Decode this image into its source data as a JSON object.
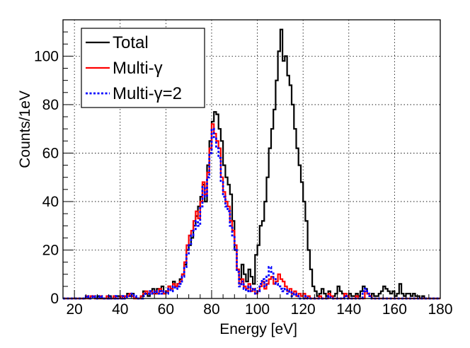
{
  "chart_data": {
    "type": "histogram",
    "title": "",
    "xlabel": "Energy [eV]",
    "ylabel": "Counts/1eV",
    "xlim": [
      15,
      180
    ],
    "ylim": [
      0,
      115
    ],
    "grid": true,
    "bin_width": 1,
    "x_ticks": [
      20,
      40,
      60,
      80,
      100,
      120,
      140,
      160,
      180
    ],
    "y_ticks": [
      0,
      20,
      40,
      60,
      80,
      100
    ],
    "legend_position": "top-left",
    "series": [
      {
        "name": "Total",
        "color": "#000000",
        "style": "solid",
        "points": [
          [
            15,
            0
          ],
          [
            24,
            0
          ],
          [
            25,
            1
          ],
          [
            26,
            0
          ],
          [
            27,
            1
          ],
          [
            29,
            0
          ],
          [
            30,
            1
          ],
          [
            31,
            0
          ],
          [
            35,
            1
          ],
          [
            36,
            0
          ],
          [
            38,
            1
          ],
          [
            40,
            0
          ],
          [
            42,
            1
          ],
          [
            43,
            2
          ],
          [
            44,
            1
          ],
          [
            45,
            2
          ],
          [
            46,
            0
          ],
          [
            49,
            1
          ],
          [
            50,
            3
          ],
          [
            51,
            2
          ],
          [
            52,
            1
          ],
          [
            53,
            3
          ],
          [
            54,
            4
          ],
          [
            55,
            2
          ],
          [
            56,
            4
          ],
          [
            57,
            3
          ],
          [
            58,
            5
          ],
          [
            59,
            2
          ],
          [
            60,
            3
          ],
          [
            61,
            5
          ],
          [
            62,
            4
          ],
          [
            63,
            7
          ],
          [
            64,
            5
          ],
          [
            65,
            6
          ],
          [
            66,
            8
          ],
          [
            67,
            10
          ],
          [
            68,
            14
          ],
          [
            69,
            20
          ],
          [
            70,
            22
          ],
          [
            71,
            25
          ],
          [
            72,
            30
          ],
          [
            73,
            34
          ],
          [
            74,
            38
          ],
          [
            75,
            42
          ],
          [
            76,
            47
          ],
          [
            77,
            40
          ],
          [
            78,
            55
          ],
          [
            79,
            65
          ],
          [
            80,
            73
          ],
          [
            81,
            77
          ],
          [
            82,
            76
          ],
          [
            83,
            70
          ],
          [
            84,
            65
          ],
          [
            85,
            55
          ],
          [
            86,
            50
          ],
          [
            87,
            47
          ],
          [
            88,
            43
          ],
          [
            89,
            32
          ],
          [
            90,
            20
          ],
          [
            91,
            12
          ],
          [
            92,
            8
          ],
          [
            93,
            14
          ],
          [
            94,
            10
          ],
          [
            95,
            7
          ],
          [
            96,
            12
          ],
          [
            97,
            9
          ],
          [
            98,
            6
          ],
          [
            99,
            18
          ],
          [
            100,
            22
          ],
          [
            101,
            30
          ],
          [
            102,
            32
          ],
          [
            103,
            40
          ],
          [
            104,
            50
          ],
          [
            105,
            62
          ],
          [
            106,
            70
          ],
          [
            107,
            78
          ],
          [
            108,
            90
          ],
          [
            109,
            102
          ],
          [
            110,
            111
          ],
          [
            111,
            98
          ],
          [
            112,
            100
          ],
          [
            113,
            92
          ],
          [
            114,
            88
          ],
          [
            115,
            80
          ],
          [
            116,
            70
          ],
          [
            117,
            62
          ],
          [
            118,
            55
          ],
          [
            119,
            48
          ],
          [
            120,
            40
          ],
          [
            121,
            32
          ],
          [
            122,
            20
          ],
          [
            123,
            12
          ],
          [
            124,
            5
          ],
          [
            125,
            3
          ],
          [
            126,
            1
          ],
          [
            127,
            2
          ],
          [
            128,
            4
          ],
          [
            129,
            2
          ],
          [
            130,
            1
          ],
          [
            131,
            3
          ],
          [
            132,
            1
          ],
          [
            134,
            2
          ],
          [
            135,
            5
          ],
          [
            136,
            3
          ],
          [
            137,
            2
          ],
          [
            138,
            1
          ],
          [
            140,
            2
          ],
          [
            141,
            1
          ],
          [
            143,
            2
          ],
          [
            144,
            1
          ],
          [
            145,
            3
          ],
          [
            146,
            5
          ],
          [
            147,
            4
          ],
          [
            148,
            2
          ],
          [
            149,
            1
          ],
          [
            150,
            2
          ],
          [
            151,
            1
          ],
          [
            153,
            2
          ],
          [
            154,
            3
          ],
          [
            155,
            5
          ],
          [
            156,
            4
          ],
          [
            157,
            3
          ],
          [
            158,
            2
          ],
          [
            159,
            3
          ],
          [
            160,
            1
          ],
          [
            161,
            2
          ],
          [
            162,
            6
          ],
          [
            163,
            2
          ],
          [
            164,
            1
          ],
          [
            165,
            2
          ],
          [
            167,
            1
          ],
          [
            168,
            2
          ],
          [
            169,
            1
          ],
          [
            171,
            0
          ],
          [
            172,
            1
          ],
          [
            173,
            0
          ],
          [
            180,
            0
          ]
        ]
      },
      {
        "name": "Multi-γ",
        "color": "#ff0000",
        "style": "solid",
        "points": [
          [
            15,
            0
          ],
          [
            25,
            1
          ],
          [
            26,
            0
          ],
          [
            27,
            1
          ],
          [
            29,
            0
          ],
          [
            31,
            1
          ],
          [
            32,
            0
          ],
          [
            34,
            1
          ],
          [
            35,
            0
          ],
          [
            37,
            1
          ],
          [
            38,
            0
          ],
          [
            40,
            1
          ],
          [
            41,
            0
          ],
          [
            42,
            1
          ],
          [
            44,
            2
          ],
          [
            45,
            1
          ],
          [
            46,
            0
          ],
          [
            49,
            1
          ],
          [
            50,
            2
          ],
          [
            51,
            3
          ],
          [
            52,
            2
          ],
          [
            53,
            3
          ],
          [
            54,
            2
          ],
          [
            55,
            3
          ],
          [
            56,
            2
          ],
          [
            57,
            4
          ],
          [
            58,
            3
          ],
          [
            59,
            2
          ],
          [
            60,
            3
          ],
          [
            61,
            5
          ],
          [
            62,
            4
          ],
          [
            63,
            6
          ],
          [
            64,
            5
          ],
          [
            65,
            6
          ],
          [
            66,
            7
          ],
          [
            67,
            10
          ],
          [
            68,
            15
          ],
          [
            69,
            22
          ],
          [
            70,
            26
          ],
          [
            71,
            28
          ],
          [
            72,
            32
          ],
          [
            73,
            36
          ],
          [
            74,
            33
          ],
          [
            75,
            40
          ],
          [
            76,
            48
          ],
          [
            77,
            43
          ],
          [
            78,
            52
          ],
          [
            79,
            62
          ],
          [
            80,
            72
          ],
          [
            81,
            68
          ],
          [
            82,
            65
          ],
          [
            83,
            62
          ],
          [
            84,
            50
          ],
          [
            85,
            44
          ],
          [
            86,
            40
          ],
          [
            87,
            38
          ],
          [
            88,
            32
          ],
          [
            89,
            28
          ],
          [
            90,
            22
          ],
          [
            91,
            12
          ],
          [
            92,
            6
          ],
          [
            93,
            8
          ],
          [
            94,
            5
          ],
          [
            95,
            4
          ],
          [
            96,
            6
          ],
          [
            97,
            3
          ],
          [
            98,
            4
          ],
          [
            99,
            2
          ],
          [
            100,
            3
          ],
          [
            101,
            5
          ],
          [
            102,
            7
          ],
          [
            103,
            4
          ],
          [
            104,
            6
          ],
          [
            105,
            8
          ],
          [
            106,
            9
          ],
          [
            107,
            6
          ],
          [
            108,
            7
          ],
          [
            109,
            10
          ],
          [
            110,
            8
          ],
          [
            111,
            7
          ],
          [
            112,
            5
          ],
          [
            113,
            3
          ],
          [
            114,
            4
          ],
          [
            115,
            2
          ],
          [
            116,
            3
          ],
          [
            117,
            1
          ],
          [
            118,
            2
          ],
          [
            119,
            1
          ],
          [
            120,
            2
          ],
          [
            121,
            0
          ],
          [
            122,
            1
          ],
          [
            123,
            0
          ],
          [
            127,
            1
          ],
          [
            128,
            0
          ],
          [
            131,
            2
          ],
          [
            132,
            1
          ],
          [
            133,
            0
          ],
          [
            138,
            2
          ],
          [
            139,
            1
          ],
          [
            140,
            0
          ],
          [
            143,
            1
          ],
          [
            144,
            0
          ],
          [
            147,
            3
          ],
          [
            148,
            2
          ],
          [
            149,
            1
          ],
          [
            150,
            0
          ],
          [
            180,
            0
          ]
        ]
      },
      {
        "name": "Multi-γ=2",
        "color": "#0000ff",
        "style": "dotted",
        "points": [
          [
            15,
            0
          ],
          [
            25,
            1
          ],
          [
            26,
            0
          ],
          [
            28,
            1
          ],
          [
            29,
            0
          ],
          [
            31,
            1
          ],
          [
            32,
            0
          ],
          [
            35,
            1
          ],
          [
            36,
            0
          ],
          [
            38,
            1
          ],
          [
            39,
            0
          ],
          [
            41,
            1
          ],
          [
            42,
            0
          ],
          [
            43,
            1
          ],
          [
            45,
            2
          ],
          [
            46,
            1
          ],
          [
            47,
            0
          ],
          [
            50,
            1
          ],
          [
            51,
            2
          ],
          [
            52,
            2
          ],
          [
            53,
            3
          ],
          [
            54,
            2
          ],
          [
            55,
            3
          ],
          [
            56,
            2
          ],
          [
            57,
            3
          ],
          [
            58,
            2
          ],
          [
            59,
            3
          ],
          [
            60,
            2
          ],
          [
            61,
            4
          ],
          [
            62,
            3
          ],
          [
            63,
            5
          ],
          [
            64,
            4
          ],
          [
            65,
            5
          ],
          [
            66,
            6
          ],
          [
            67,
            9
          ],
          [
            68,
            13
          ],
          [
            69,
            18
          ],
          [
            70,
            22
          ],
          [
            71,
            26
          ],
          [
            72,
            28
          ],
          [
            73,
            32
          ],
          [
            74,
            30
          ],
          [
            75,
            38
          ],
          [
            76,
            46
          ],
          [
            77,
            42
          ],
          [
            78,
            50
          ],
          [
            79,
            60
          ],
          [
            80,
            70
          ],
          [
            81,
            66
          ],
          [
            82,
            62
          ],
          [
            83,
            58
          ],
          [
            84,
            48
          ],
          [
            85,
            42
          ],
          [
            86,
            38
          ],
          [
            87,
            36
          ],
          [
            88,
            30
          ],
          [
            89,
            26
          ],
          [
            90,
            20
          ],
          [
            91,
            11
          ],
          [
            92,
            5
          ],
          [
            93,
            7
          ],
          [
            94,
            4
          ],
          [
            95,
            3
          ],
          [
            96,
            5
          ],
          [
            97,
            3
          ],
          [
            98,
            4
          ],
          [
            99,
            2
          ],
          [
            100,
            3
          ],
          [
            101,
            6
          ],
          [
            102,
            8
          ],
          [
            103,
            5
          ],
          [
            104,
            9
          ],
          [
            105,
            13
          ],
          [
            106,
            11
          ],
          [
            107,
            8
          ],
          [
            108,
            6
          ],
          [
            109,
            5
          ],
          [
            110,
            4
          ],
          [
            111,
            3
          ],
          [
            112,
            4
          ],
          [
            113,
            2
          ],
          [
            114,
            3
          ],
          [
            115,
            1
          ],
          [
            116,
            2
          ],
          [
            117,
            1
          ],
          [
            118,
            0
          ],
          [
            121,
            1
          ],
          [
            122,
            0
          ],
          [
            131,
            1
          ],
          [
            132,
            0
          ],
          [
            138,
            1
          ],
          [
            139,
            0
          ],
          [
            146,
            3
          ],
          [
            147,
            4
          ],
          [
            148,
            2
          ],
          [
            149,
            1
          ],
          [
            150,
            0
          ],
          [
            180,
            0
          ]
        ]
      }
    ]
  }
}
